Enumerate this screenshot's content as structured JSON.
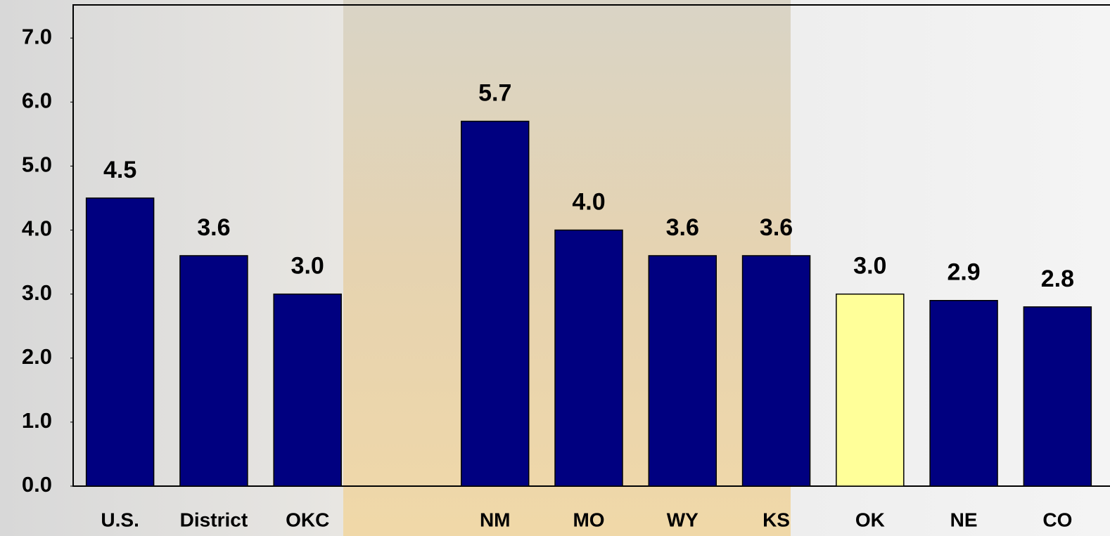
{
  "chart_data": {
    "type": "bar",
    "categories": [
      "U.S.",
      "District",
      "OKC",
      null,
      "NM",
      "MO",
      "WY",
      "KS",
      "OK",
      "NE",
      "CO"
    ],
    "values": [
      4.5,
      3.6,
      3.0,
      null,
      5.7,
      4.0,
      3.6,
      3.6,
      3.0,
      2.9,
      2.8
    ],
    "value_labels": [
      "4.5",
      "3.6",
      "3.0",
      null,
      "5.7",
      "4.0",
      "3.6",
      "3.6",
      "3.0",
      "2.9",
      "2.8"
    ],
    "colors": [
      "#000080",
      "#000080",
      "#000080",
      null,
      "#000080",
      "#000080",
      "#000080",
      "#000080",
      "#ffff99",
      "#000080",
      "#000080"
    ],
    "ylim": [
      0,
      7.5
    ],
    "yticks": [
      {
        "value": 0,
        "label": "0.0"
      },
      {
        "value": 1,
        "label": "1.0"
      },
      {
        "value": 2,
        "label": "2.0"
      },
      {
        "value": 3,
        "label": "3.0"
      },
      {
        "value": 4,
        "label": "4.0"
      },
      {
        "value": 5,
        "label": "5.0"
      },
      {
        "value": 6,
        "label": "6.0"
      },
      {
        "value": 7,
        "label": "7.0"
      }
    ],
    "grid": false
  }
}
